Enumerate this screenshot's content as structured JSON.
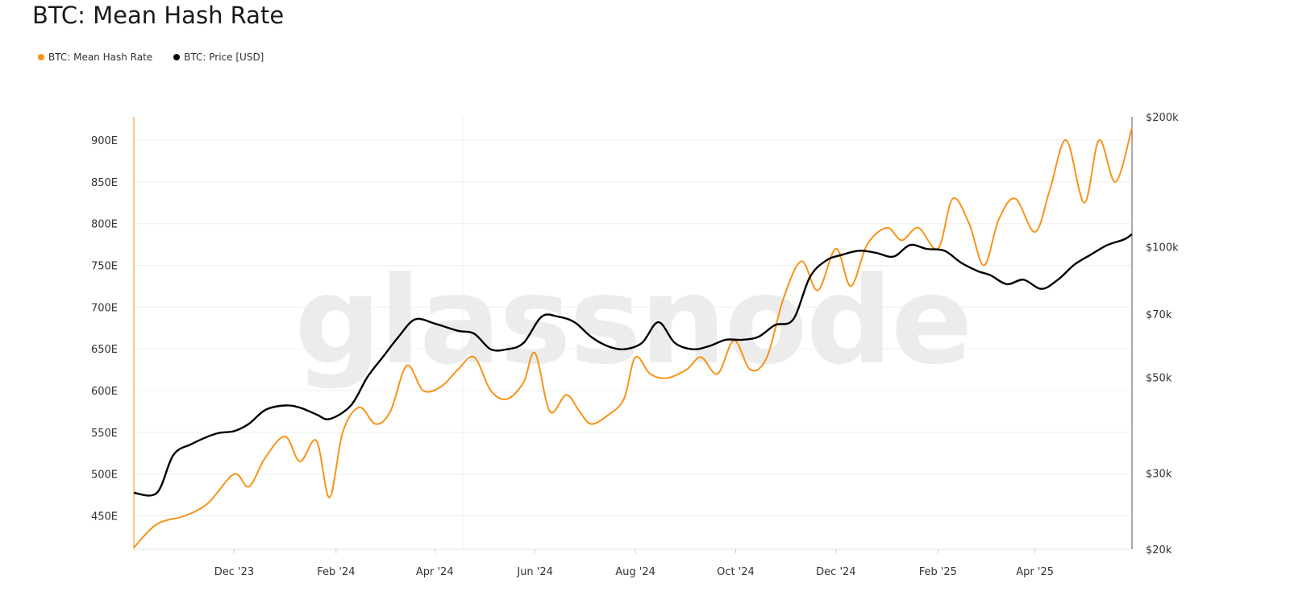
{
  "title": "BTC: Mean Hash Rate",
  "watermark": "glassnode",
  "colors": {
    "hash": "#f7931a",
    "price": "#000000",
    "grid": "#efefef",
    "axis": "#f7931a"
  },
  "legend": [
    {
      "label": "BTC: Mean Hash Rate",
      "color": "#f7931a"
    },
    {
      "label": "BTC: Price [USD]",
      "color": "#000000"
    }
  ],
  "chart_data": {
    "type": "line",
    "x_ticks": [
      "Dec '23",
      "Feb '24",
      "Apr '24",
      "Jun '24",
      "Aug '24",
      "Oct '24",
      "Dec '24",
      "Feb '25",
      "Apr '25"
    ],
    "x_range": [
      "2023-10-01",
      "2025-05-30"
    ],
    "left_axis": {
      "ticks": [
        "450E",
        "500E",
        "550E",
        "600E",
        "650E",
        "700E",
        "750E",
        "800E",
        "850E",
        "900E"
      ],
      "values": [
        450,
        500,
        550,
        600,
        650,
        700,
        750,
        800,
        850,
        900
      ],
      "ylim": [
        410,
        928
      ]
    },
    "right_axis": {
      "scale": "log",
      "ticks": [
        "$20k",
        "$30k",
        "$50k",
        "$70k",
        "$100k",
        "$200k"
      ],
      "values": [
        20000,
        30000,
        50000,
        70000,
        100000,
        200000
      ],
      "ylim": [
        20000,
        200000
      ]
    },
    "series": [
      {
        "name": "BTC: Mean Hash Rate",
        "axis": "left",
        "x": [
          "2023-10-01",
          "2023-10-15",
          "2023-11-01",
          "2023-11-15",
          "2023-12-01",
          "2023-12-10",
          "2023-12-20",
          "2024-01-01",
          "2024-01-10",
          "2024-01-20",
          "2024-01-28",
          "2024-02-05",
          "2024-02-15",
          "2024-02-25",
          "2024-03-05",
          "2024-03-15",
          "2024-03-25",
          "2024-04-05",
          "2024-04-15",
          "2024-04-25",
          "2024-05-05",
          "2024-05-15",
          "2024-05-25",
          "2024-06-01",
          "2024-06-10",
          "2024-06-20",
          "2024-06-28",
          "2024-07-05",
          "2024-07-15",
          "2024-07-25",
          "2024-08-01",
          "2024-08-10",
          "2024-08-20",
          "2024-09-01",
          "2024-09-10",
          "2024-09-20",
          "2024-09-30",
          "2024-10-10",
          "2024-10-20",
          "2024-10-30",
          "2024-11-10",
          "2024-11-20",
          "2024-12-01",
          "2024-12-10",
          "2024-12-20",
          "2025-01-01",
          "2025-01-10",
          "2025-01-20",
          "2025-02-01",
          "2025-02-10",
          "2025-02-20",
          "2025-03-01",
          "2025-03-10",
          "2025-03-20",
          "2025-04-01",
          "2025-04-10",
          "2025-04-20",
          "2025-05-01",
          "2025-05-10",
          "2025-05-20",
          "2025-05-30"
        ],
        "values": [
          412,
          440,
          450,
          465,
          500,
          485,
          520,
          545,
          515,
          540,
          472,
          550,
          580,
          560,
          575,
          630,
          600,
          605,
          625,
          640,
          600,
          590,
          610,
          645,
          575,
          595,
          575,
          560,
          570,
          590,
          640,
          620,
          615,
          625,
          640,
          620,
          660,
          625,
          640,
          710,
          755,
          720,
          770,
          725,
          775,
          795,
          780,
          795,
          770,
          830,
          800,
          750,
          805,
          830,
          790,
          840,
          900,
          825,
          900,
          850,
          915
        ]
      },
      {
        "name": "BTC: Price [USD]",
        "axis": "right",
        "x": [
          "2023-10-01",
          "2023-10-15",
          "2023-10-25",
          "2023-11-05",
          "2023-11-20",
          "2023-12-01",
          "2023-12-10",
          "2023-12-20",
          "2024-01-01",
          "2024-01-10",
          "2024-01-20",
          "2024-01-28",
          "2024-02-10",
          "2024-02-20",
          "2024-03-01",
          "2024-03-10",
          "2024-03-20",
          "2024-04-01",
          "2024-04-15",
          "2024-04-25",
          "2024-05-05",
          "2024-05-15",
          "2024-05-25",
          "2024-06-05",
          "2024-06-15",
          "2024-06-25",
          "2024-07-05",
          "2024-07-15",
          "2024-07-25",
          "2024-08-05",
          "2024-08-15",
          "2024-08-25",
          "2024-09-05",
          "2024-09-15",
          "2024-09-25",
          "2024-10-05",
          "2024-10-15",
          "2024-10-25",
          "2024-11-05",
          "2024-11-15",
          "2024-11-25",
          "2024-12-05",
          "2024-12-15",
          "2024-12-25",
          "2025-01-05",
          "2025-01-15",
          "2025-01-25",
          "2025-02-05",
          "2025-02-15",
          "2025-02-25",
          "2025-03-05",
          "2025-03-15",
          "2025-03-25",
          "2025-04-05",
          "2025-04-15",
          "2025-04-25",
          "2025-05-05",
          "2025-05-15",
          "2025-05-25",
          "2025-05-30"
        ],
        "values": [
          27000,
          27000,
          33000,
          35000,
          37000,
          37500,
          39000,
          42000,
          43000,
          42500,
          41000,
          40000,
          43000,
          50000,
          56000,
          62000,
          68000,
          66500,
          64000,
          63000,
          58000,
          58000,
          60000,
          69000,
          69000,
          67000,
          62000,
          59000,
          58000,
          60000,
          67000,
          60000,
          58000,
          59000,
          61000,
          61000,
          62000,
          66000,
          68000,
          85000,
          93000,
          96000,
          98000,
          97000,
          95000,
          101000,
          99000,
          98000,
          92000,
          88000,
          86000,
          82000,
          84000,
          80000,
          84000,
          91000,
          96000,
          101000,
          104000,
          107000
        ]
      }
    ],
    "legend_position": "top-left",
    "grid": true
  }
}
